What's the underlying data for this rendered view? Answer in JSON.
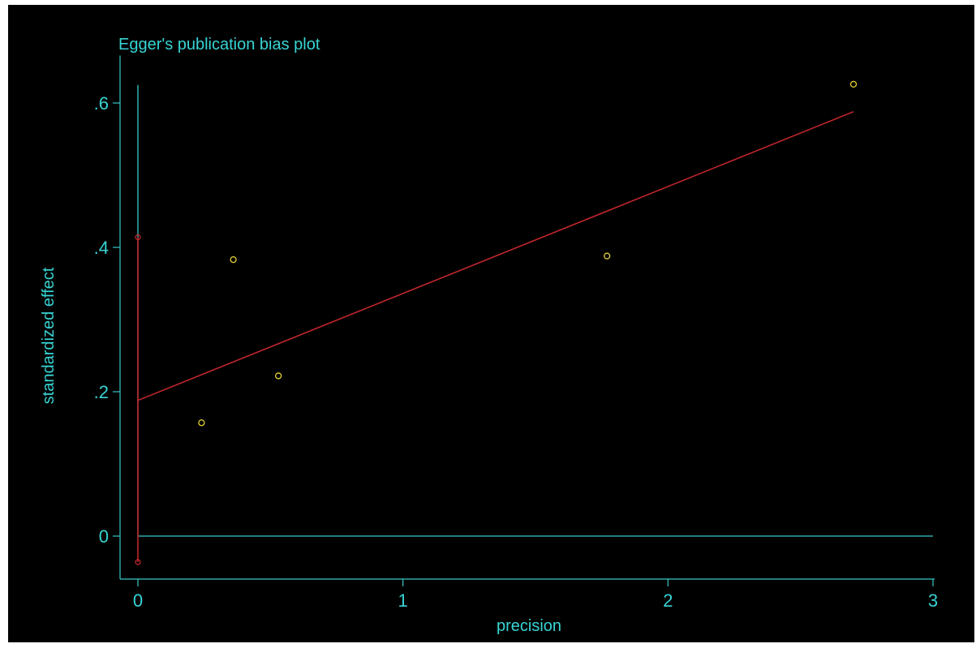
{
  "chart_data": {
    "type": "scatter",
    "title": "Egger's publication bias plot",
    "xlabel": "precision",
    "ylabel": "standardized effect",
    "xlim": [
      -0.08,
      3.02
    ],
    "ylim": [
      -0.06,
      0.65
    ],
    "x_ticks": [
      0,
      1,
      2,
      3
    ],
    "x_tick_labels": [
      "0",
      "1",
      "2",
      "3"
    ],
    "y_ticks": [
      0,
      0.2,
      0.4,
      0.6
    ],
    "y_tick_labels": [
      "0",
      ".2",
      ".4",
      ".6"
    ],
    "grid": false,
    "series": [
      {
        "type": "scatter",
        "marker": "hollow-circle",
        "color": "#e6d234",
        "points": [
          {
            "x": 0.24,
            "y": 0.157
          },
          {
            "x": 0.36,
            "y": 0.383
          },
          {
            "x": 0.53,
            "y": 0.222
          },
          {
            "x": 1.77,
            "y": 0.388
          },
          {
            "x": 2.7,
            "y": 0.626
          }
        ]
      },
      {
        "type": "line",
        "color": "#c0262c",
        "points": [
          {
            "x": 0,
            "y": 0.188
          },
          {
            "x": 2.7,
            "y": 0.588
          }
        ]
      },
      {
        "type": "errorbar",
        "color": "#c0262c",
        "x": 0,
        "y_low": -0.036,
        "y_high": 0.414
      }
    ],
    "reference_lines": {
      "horizontal": {
        "y": 0,
        "x_from": 0,
        "x_to": 3,
        "color": "#38c8c8"
      },
      "vertical": {
        "x": 0,
        "y_from": 0,
        "y_to": 0.625,
        "color": "#38c8c8"
      }
    },
    "colors": {
      "background": "#000000",
      "axes": "#38c8c8",
      "text": "#38d4d4",
      "points": "#e6d234",
      "fit": "#c0262c"
    }
  }
}
